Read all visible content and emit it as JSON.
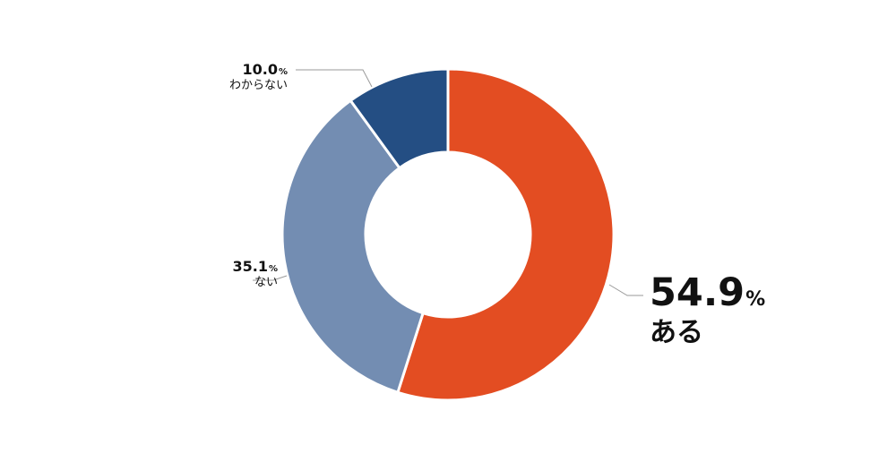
{
  "chart_data": {
    "type": "pie",
    "variant": "donut",
    "unit": "%",
    "categories": [
      "ある",
      "ない",
      "わからない"
    ],
    "values": [
      54.9,
      35.1,
      10.0
    ],
    "value_labels": [
      "54.9",
      "35.1",
      "10.0"
    ],
    "colors": [
      "#e34d22",
      "#738db2",
      "#244e83"
    ],
    "title": "",
    "legend": "none"
  }
}
